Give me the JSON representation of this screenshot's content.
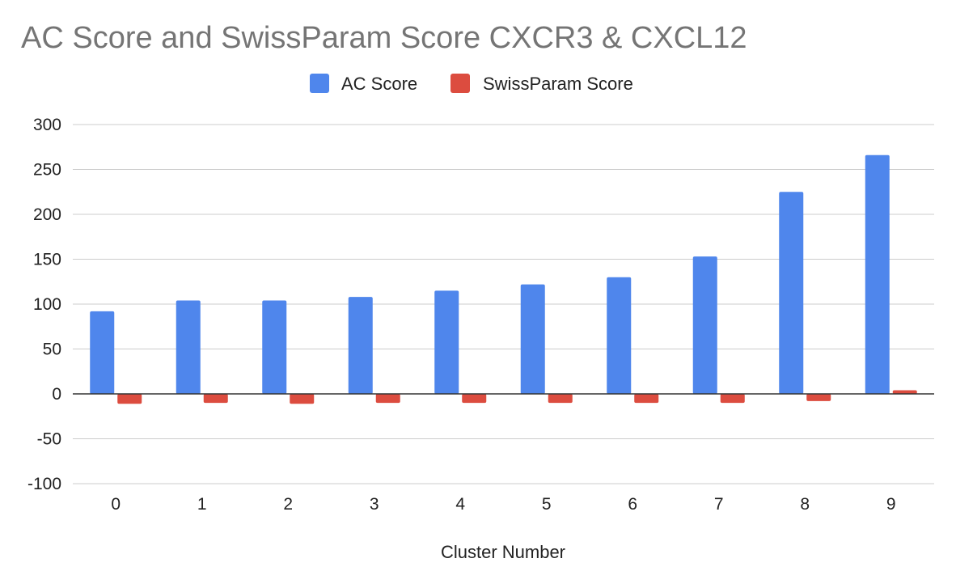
{
  "chart_data": {
    "type": "bar",
    "title": "AC Score and SwissParam Score CXCR3 & CXCL12",
    "xlabel": "Cluster Number",
    "ylabel": "",
    "categories": [
      "0",
      "1",
      "2",
      "3",
      "4",
      "5",
      "6",
      "7",
      "8",
      "9"
    ],
    "series": [
      {
        "name": "AC Score",
        "color": "#4f86ec",
        "values": [
          92,
          104,
          104,
          108,
          115,
          122,
          130,
          153,
          225,
          266
        ]
      },
      {
        "name": "SwissParam Score",
        "color": "#dc4c3f",
        "values": [
          -11,
          -10,
          -11,
          -10,
          -10,
          -10,
          -10,
          -10,
          -8,
          4
        ]
      }
    ],
    "ylim": [
      -100,
      300
    ],
    "yticks": [
      "300",
      "250",
      "200",
      "150",
      "100",
      "50",
      "0",
      "-50",
      "-100"
    ],
    "grid": true,
    "legend_position": "top-center"
  }
}
